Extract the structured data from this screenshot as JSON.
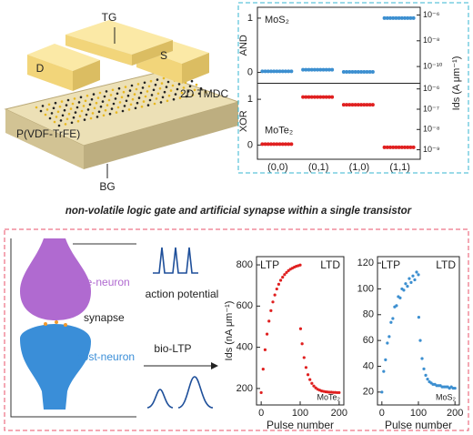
{
  "device": {
    "top_gate": "TG",
    "drain": "D",
    "source": "S",
    "channel": "2D TMDC",
    "dielectric": "P(VDF-TrFE)",
    "bottom_gate": "BG"
  },
  "caption": "non-volatile logic gate and artificial synapse within a single transistor",
  "synapse": {
    "pre": "pre-neuron",
    "cleft": "synapse",
    "post": "post-neuron",
    "spike": "action potential",
    "potentiation": "bio-LTP"
  },
  "chart_data": [
    {
      "type": "logic",
      "categories": [
        "(0,0)",
        "(0,1)",
        "(1,0)",
        "(1,1)"
      ],
      "y2label": "Ids (A μm⁻¹)",
      "y2scale": "log",
      "panels": [
        {
          "ylabel": "AND",
          "material": "MoS₂",
          "color": "#3c8fd0",
          "ylim": [
            -0.2,
            1.2
          ],
          "yticks": [
            0,
            1
          ],
          "y2lim": [
            5e-12,
            4e-06
          ],
          "y2ticks": [
            {
              "value": 1e-06,
              "label": "10⁻⁶"
            },
            {
              "value": 1e-08,
              "label": "10⁻⁸"
            },
            {
              "value": 1e-10,
              "label": "10⁻¹⁰"
            }
          ],
          "values": [
            0.02,
            0.05,
            0.01,
            1.0
          ]
        },
        {
          "ylabel": "XOR",
          "material": "MoTe₂",
          "color": "#e02020",
          "ylim": [
            -0.31,
            1.35
          ],
          "yticks": [
            0,
            1
          ],
          "y2lim": [
            3.4e-10,
            1.9e-06
          ],
          "y2ticks": [
            {
              "value": 1e-06,
              "label": "10⁻⁶"
            },
            {
              "value": 1e-07,
              "label": "10⁻⁷"
            },
            {
              "value": 1e-08,
              "label": "10⁻⁸"
            },
            {
              "value": 1e-09,
              "label": "10⁻⁹"
            }
          ],
          "values": [
            0.02,
            1.05,
            0.88,
            -0.05
          ]
        }
      ]
    },
    {
      "type": "scatter",
      "xlabel": "Pulse number",
      "ylabel": "Ids (nA μm⁻¹)",
      "material": "MoTe₂",
      "xlim": [
        -12,
        212
      ],
      "xticks": [
        0,
        100,
        200
      ],
      "ylim": [
        120,
        840
      ],
      "yticks": [
        200,
        400,
        600,
        800
      ],
      "series": [
        {
          "name": "LTP",
          "color": "#e02020",
          "x": [
            0,
            5,
            10,
            15,
            20,
            25,
            30,
            35,
            40,
            45,
            50,
            55,
            60,
            65,
            70,
            75,
            80,
            85,
            90,
            95,
            100
          ],
          "values": [
            180,
            294,
            388,
            464,
            527,
            578,
            620,
            654,
            683,
            706,
            725,
            740,
            753,
            763,
            772,
            779,
            784,
            789,
            793,
            796,
            799
          ]
        },
        {
          "name": "LTD",
          "color": "#e02020",
          "x": [
            101,
            105,
            110,
            115,
            120,
            125,
            130,
            135,
            140,
            145,
            150,
            155,
            160,
            165,
            170,
            175,
            180,
            185,
            190,
            195,
            200
          ],
          "values": [
            490,
            417,
            350,
            302,
            267,
            243,
            225,
            212,
            203,
            196,
            192,
            188,
            186,
            184,
            183,
            182,
            182,
            181,
            181,
            180,
            180
          ]
        }
      ]
    },
    {
      "type": "scatter",
      "xlabel": "Pulse number",
      "material": "MoS₂",
      "xlim": [
        -12,
        212
      ],
      "xticks": [
        0,
        100,
        200
      ],
      "ylim": [
        10,
        125
      ],
      "yticks": [
        20,
        40,
        60,
        80,
        100,
        120
      ],
      "series": [
        {
          "name": "LTP",
          "color": "#3c8fd0",
          "x": [
            0,
            5,
            10,
            15,
            20,
            25,
            30,
            35,
            40,
            45,
            50,
            55,
            60,
            65,
            70,
            75,
            80,
            85,
            90,
            95,
            100
          ],
          "values": [
            20,
            36,
            45,
            58,
            63,
            74,
            77,
            86,
            87,
            94,
            93,
            100,
            99,
            104,
            102,
            108,
            105,
            110,
            107,
            113,
            111
          ]
        },
        {
          "name": "LTD",
          "color": "#3c8fd0",
          "x": [
            101,
            105,
            110,
            115,
            120,
            125,
            130,
            135,
            140,
            145,
            150,
            155,
            160,
            165,
            170,
            175,
            180,
            185,
            190,
            195,
            200
          ],
          "values": [
            78,
            60,
            46,
            38,
            33,
            30,
            28,
            27,
            26,
            26,
            25,
            25,
            25,
            24,
            24,
            24,
            24,
            23,
            24,
            23,
            23
          ]
        }
      ]
    }
  ]
}
